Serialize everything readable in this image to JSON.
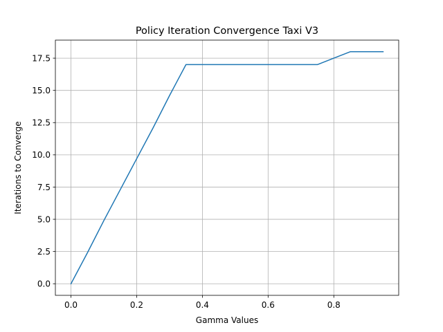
{
  "chart_data": {
    "type": "line",
    "title": "Policy Iteration Convergence Taxi V3",
    "xlabel": "Gamma Values",
    "ylabel": "Iterations to Converge",
    "x": [
      0.0,
      0.05,
      0.1,
      0.15,
      0.2,
      0.25,
      0.3,
      0.35,
      0.4,
      0.45,
      0.5,
      0.55,
      0.6,
      0.65,
      0.7,
      0.75,
      0.8,
      0.85,
      0.9,
      0.95
    ],
    "series": [
      {
        "values": [
          0,
          2.4,
          4.9,
          7.3,
          9.7,
          12.1,
          14.6,
          17,
          17,
          17,
          17,
          17,
          17,
          17,
          17,
          17,
          17.5,
          18,
          18,
          18
        ],
        "color": "#1f77b4"
      }
    ],
    "xlim": [
      -0.0475,
      0.9975
    ],
    "ylim": [
      -0.9,
      18.9
    ],
    "xticks": [
      0.0,
      0.2,
      0.4,
      0.6,
      0.8
    ],
    "xtick_labels": [
      "0.0",
      "0.2",
      "0.4",
      "0.6",
      "0.8"
    ],
    "yticks": [
      0.0,
      2.5,
      5.0,
      7.5,
      10.0,
      12.5,
      15.0,
      17.5
    ],
    "ytick_labels": [
      "0.0",
      "2.5",
      "5.0",
      "7.5",
      "10.0",
      "12.5",
      "15.0",
      "17.5"
    ],
    "grid": true,
    "legend": "none"
  }
}
